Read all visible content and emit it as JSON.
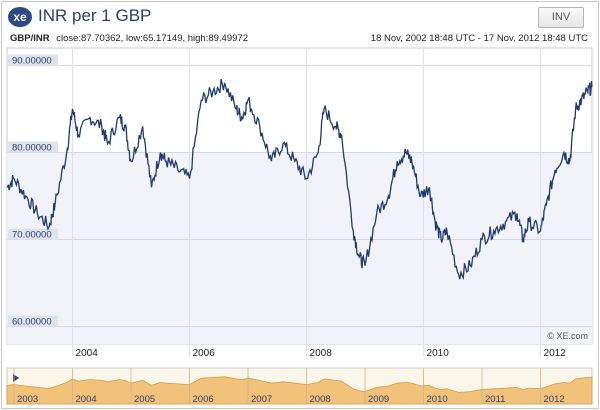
{
  "header": {
    "logo_text": "xe",
    "title": "INR per 1 GBP",
    "inv_label": "INV"
  },
  "subheader": {
    "pair": "GBP/INR",
    "stats": "close:87.70362, low:65.17149, high:89.49972",
    "range": "18 Nov, 2002 18:48 UTC - 17 Nov, 2012 18:48 UTC"
  },
  "watermark": "© XE.com",
  "colors": {
    "line": "#1f3a6e",
    "band": "#f1f3f8",
    "overview_fill": "#f2c27a",
    "title": "#2b3f6b"
  },
  "chart_data": {
    "type": "line",
    "title": "INR per 1 GBP",
    "x_range": [
      "2002-11-18",
      "2012-11-17"
    ],
    "ylim": [
      58,
      92
    ],
    "y_ticks": [
      "60.00000",
      "70.00000",
      "80.00000",
      "90.00000"
    ],
    "y_tick_values": [
      60,
      70,
      80,
      90
    ],
    "x_ticks": [
      "2004",
      "2006",
      "2008",
      "2010",
      "2012"
    ],
    "overview_ticks": [
      "2003",
      "2004",
      "2005",
      "2006",
      "2007",
      "2008",
      "2009",
      "2010",
      "2011",
      "2012"
    ],
    "grid": true,
    "series": [
      {
        "x": [
          2002.88,
          2003.0,
          2003.2,
          2003.4,
          2003.6,
          2003.7,
          2003.9,
          2004.0,
          2004.1,
          2004.3,
          2004.5,
          2004.6,
          2004.8,
          2004.9,
          2005.0,
          2005.2,
          2005.35,
          2005.5,
          2005.6,
          2005.8,
          2006.0,
          2006.2,
          2006.4,
          2006.6,
          2006.8,
          2006.9,
          2007.0,
          2007.2,
          2007.4,
          2007.6,
          2007.8,
          2008.0,
          2008.2,
          2008.3,
          2008.5,
          2008.6,
          2008.8,
          2008.9,
          2009.0,
          2009.2,
          2009.4,
          2009.55,
          2009.7,
          2009.8,
          2009.95,
          2010.1,
          2010.2,
          2010.3,
          2010.4,
          2010.6,
          2010.8,
          2011.0,
          2011.2,
          2011.4,
          2011.6,
          2011.7,
          2011.8,
          2012.0,
          2012.1,
          2012.25,
          2012.4,
          2012.5,
          2012.6,
          2012.7,
          2012.8,
          2012.88
        ],
        "y": [
          76,
          77,
          75,
          73,
          71.5,
          74,
          80,
          85,
          82,
          84,
          83,
          81,
          84,
          83,
          79,
          83,
          76,
          80,
          79,
          78,
          77,
          86,
          87,
          88,
          85,
          84,
          86,
          83,
          79,
          81,
          79,
          77,
          80,
          85,
          83,
          82,
          71,
          68,
          67,
          73,
          75,
          79,
          80,
          79,
          75,
          76,
          72,
          70,
          71,
          66,
          67,
          70,
          71,
          72,
          73,
          70,
          72,
          71,
          74,
          78,
          80,
          79,
          85,
          86,
          87,
          87.5
        ]
      }
    ]
  }
}
